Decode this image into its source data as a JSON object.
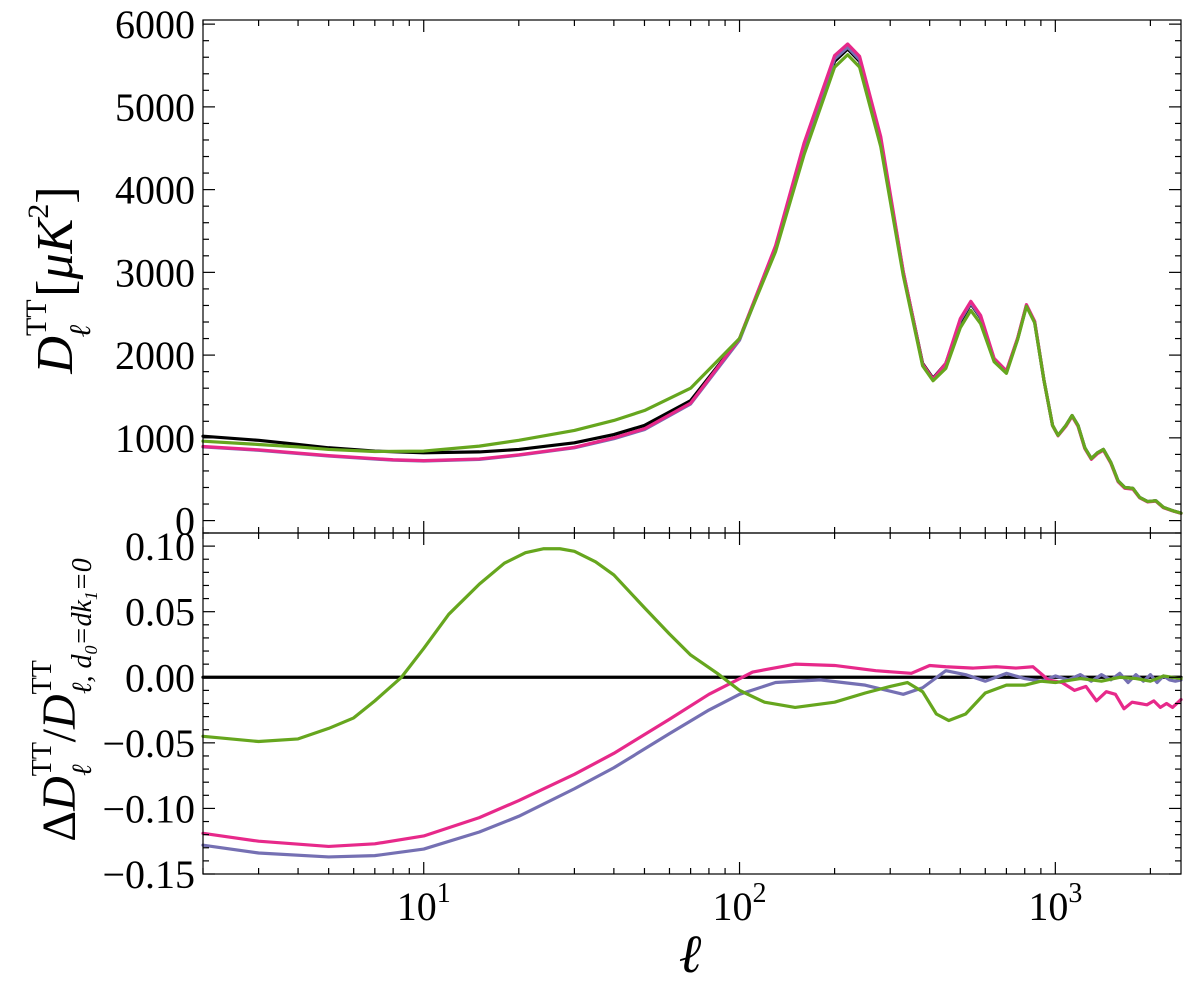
{
  "chart_data": [
    {
      "type": "line",
      "panel": "top",
      "xscale": "log",
      "xlim": [
        2,
        2500
      ],
      "ylim": [
        -150,
        6050
      ],
      "ylabel": "D_ℓ^TT [μK^2]",
      "yticks": [
        0,
        1000,
        2000,
        3000,
        4000,
        5000,
        6000
      ],
      "ytick_labels": [
        "0",
        "1000",
        "2000",
        "3000",
        "4000",
        "5000",
        "6000"
      ],
      "grid": false,
      "series": [
        {
          "color": "#000000",
          "x": [
            2,
            3,
            4,
            5,
            7,
            10,
            15,
            20,
            30,
            40,
            50,
            70,
            100,
            130,
            160,
            200,
            220,
            240,
            280,
            330,
            380,
            410,
            450,
            500,
            540,
            580,
            640,
            700,
            760,
            810,
            860,
            920,
            980,
            1020,
            1080,
            1130,
            1180,
            1240,
            1300,
            1360,
            1420,
            1500,
            1580,
            1660,
            1760,
            1850,
            1960,
            2080,
            2200,
            2350,
            2500
          ],
          "y": [
            1020,
            970,
            920,
            880,
            840,
            820,
            830,
            860,
            940,
            1040,
            1150,
            1450,
            2200,
            3300,
            4500,
            5550,
            5700,
            5550,
            4600,
            3000,
            1900,
            1720,
            1900,
            2400,
            2620,
            2450,
            1950,
            1800,
            2200,
            2600,
            2400,
            1700,
            1150,
            1030,
            1150,
            1270,
            1150,
            880,
            750,
            820,
            860,
            700,
            480,
            400,
            390,
            280,
            230,
            240,
            160,
            120,
            90
          ]
        },
        {
          "color": "#7570b3",
          "x": [
            2,
            3,
            5,
            8,
            10,
            15,
            20,
            30,
            40,
            50,
            70,
            100,
            130,
            160,
            200,
            220,
            240,
            280,
            330,
            380,
            410,
            450,
            500,
            540,
            580,
            640,
            700,
            760,
            810,
            860,
            920,
            980,
            1020,
            1080,
            1130,
            1180,
            1240,
            1300,
            1360,
            1420,
            1500,
            1580,
            1660,
            1760,
            1850,
            1960,
            2080,
            2200,
            2350,
            2500
          ],
          "y": [
            890,
            850,
            780,
            730,
            720,
            740,
            790,
            880,
            990,
            1100,
            1410,
            2180,
            3290,
            4520,
            5580,
            5720,
            5570,
            4600,
            2990,
            1880,
            1700,
            1890,
            2420,
            2630,
            2460,
            1950,
            1800,
            2200,
            2600,
            2400,
            1700,
            1150,
            1030,
            1150,
            1270,
            1150,
            880,
            750,
            820,
            860,
            700,
            480,
            400,
            390,
            280,
            230,
            240,
            160,
            120,
            90
          ]
        },
        {
          "color": "#e7298a",
          "x": [
            2,
            3,
            5,
            8,
            10,
            15,
            20,
            30,
            40,
            50,
            70,
            100,
            130,
            160,
            200,
            220,
            240,
            280,
            330,
            380,
            410,
            450,
            500,
            540,
            580,
            640,
            700,
            760,
            810,
            860,
            920,
            980,
            1020,
            1080,
            1130,
            1180,
            1240,
            1300,
            1360,
            1420,
            1500,
            1580,
            1660,
            1760,
            1850,
            1960,
            2080,
            2200,
            2350,
            2500
          ],
          "y": [
            895,
            855,
            785,
            735,
            725,
            745,
            795,
            885,
            1000,
            1110,
            1420,
            2200,
            3320,
            4560,
            5620,
            5760,
            5610,
            4640,
            3010,
            1890,
            1710,
            1900,
            2440,
            2650,
            2480,
            1960,
            1810,
            2210,
            2610,
            2410,
            1700,
            1150,
            1025,
            1140,
            1260,
            1140,
            870,
            740,
            810,
            850,
            690,
            470,
            390,
            380,
            275,
            225,
            235,
            155,
            118,
            88
          ]
        },
        {
          "color": "#66a61e",
          "x": [
            2,
            3,
            4,
            5,
            7,
            10,
            15,
            20,
            30,
            40,
            50,
            70,
            100,
            130,
            160,
            200,
            220,
            240,
            280,
            330,
            380,
            410,
            450,
            500,
            540,
            580,
            640,
            700,
            760,
            810,
            860,
            920,
            980,
            1020,
            1080,
            1130,
            1180,
            1240,
            1300,
            1360,
            1420,
            1500,
            1580,
            1660,
            1760,
            1850,
            1960,
            2080,
            2200,
            2350,
            2500
          ],
          "y": [
            960,
            920,
            890,
            860,
            835,
            840,
            900,
            970,
            1090,
            1210,
            1330,
            1600,
            2200,
            3250,
            4420,
            5480,
            5630,
            5480,
            4520,
            2960,
            1870,
            1690,
            1840,
            2330,
            2540,
            2380,
            1920,
            1780,
            2190,
            2590,
            2390,
            1700,
            1150,
            1030,
            1150,
            1270,
            1150,
            880,
            750,
            820,
            860,
            700,
            480,
            400,
            390,
            280,
            230,
            240,
            160,
            120,
            90
          ]
        }
      ]
    },
    {
      "type": "line",
      "panel": "bottom",
      "xscale": "log",
      "xlim": [
        2,
        2500
      ],
      "ylim": [
        -0.15,
        0.11
      ],
      "xlabel": "ℓ",
      "ylabel": "ΔD_ℓ^TT / D^TT_{ℓ, d_0=dk_1=0}",
      "yticks": [
        -0.15,
        -0.1,
        -0.05,
        0.0,
        0.05,
        0.1
      ],
      "ytick_labels": [
        "−0.15",
        "−0.10",
        "−0.05",
        "0.00",
        "0.05",
        "0.10"
      ],
      "xticks": [
        10,
        100,
        1000
      ],
      "xtick_labels": [
        {
          "base": "10",
          "exp": "1"
        },
        {
          "base": "10",
          "exp": "2"
        },
        {
          "base": "10",
          "exp": "3"
        }
      ],
      "grid": false,
      "series": [
        {
          "color": "#000000",
          "x": [
            2,
            2500
          ],
          "y": [
            0.0,
            0.0
          ]
        },
        {
          "color": "#7570b3",
          "x": [
            2,
            3,
            5,
            7,
            10,
            15,
            20,
            30,
            40,
            60,
            80,
            100,
            130,
            180,
            250,
            330,
            380,
            450,
            520,
            600,
            700,
            800,
            900,
            1000,
            1100,
            1200,
            1300,
            1400,
            1500,
            1600,
            1700,
            1800,
            1900,
            2000,
            2100,
            2200,
            2300,
            2400,
            2500
          ],
          "y": [
            -0.128,
            -0.134,
            -0.137,
            -0.136,
            -0.131,
            -0.118,
            -0.106,
            -0.085,
            -0.069,
            -0.043,
            -0.025,
            -0.013,
            -0.004,
            -0.002,
            -0.006,
            -0.013,
            -0.008,
            0.005,
            0.002,
            -0.003,
            0.003,
            -0.001,
            -0.003,
            0.001,
            -0.002,
            0.002,
            -0.003,
            0.002,
            -0.002,
            0.003,
            -0.004,
            0.002,
            -0.003,
            0.002,
            -0.004,
            0.001,
            -0.002,
            -0.003,
            -0.002
          ]
        },
        {
          "color": "#e7298a",
          "x": [
            2,
            3,
            5,
            7,
            10,
            15,
            20,
            30,
            40,
            60,
            80,
            110,
            150,
            200,
            270,
            350,
            400,
            450,
            550,
            650,
            750,
            850,
            950,
            1050,
            1150,
            1250,
            1350,
            1450,
            1550,
            1650,
            1750,
            1850,
            1950,
            2050,
            2150,
            2250,
            2350,
            2500
          ],
          "y": [
            -0.119,
            -0.125,
            -0.129,
            -0.127,
            -0.121,
            -0.107,
            -0.094,
            -0.074,
            -0.058,
            -0.032,
            -0.013,
            0.004,
            0.01,
            0.009,
            0.005,
            0.003,
            0.009,
            0.008,
            0.007,
            0.008,
            0.007,
            0.008,
            -0.002,
            -0.004,
            -0.01,
            -0.007,
            -0.018,
            -0.011,
            -0.013,
            -0.024,
            -0.019,
            -0.02,
            -0.021,
            -0.018,
            -0.023,
            -0.02,
            -0.023,
            -0.017
          ]
        },
        {
          "color": "#66a61e",
          "x": [
            2,
            3,
            4,
            5,
            6,
            7,
            8.5,
            10,
            12,
            15,
            18,
            21,
            24,
            27,
            30,
            35,
            40,
            50,
            60,
            70,
            85,
            100,
            120,
            150,
            200,
            250,
            300,
            340,
            380,
            420,
            460,
            520,
            600,
            700,
            800,
            900,
            1000,
            1200,
            1400,
            1600,
            1800,
            2000,
            2200,
            2500
          ],
          "y": [
            -0.045,
            -0.049,
            -0.047,
            -0.039,
            -0.031,
            -0.018,
            0.0,
            0.022,
            0.048,
            0.071,
            0.087,
            0.095,
            0.098,
            0.098,
            0.096,
            0.088,
            0.078,
            0.053,
            0.033,
            0.017,
            0.003,
            -0.01,
            -0.019,
            -0.023,
            -0.019,
            -0.012,
            -0.007,
            -0.004,
            -0.011,
            -0.028,
            -0.033,
            -0.028,
            -0.012,
            -0.006,
            -0.006,
            -0.003,
            -0.004,
            -0.001,
            -0.003,
            0.0,
            -0.001,
            -0.003,
            0.001,
            -0.001
          ]
        }
      ]
    }
  ]
}
